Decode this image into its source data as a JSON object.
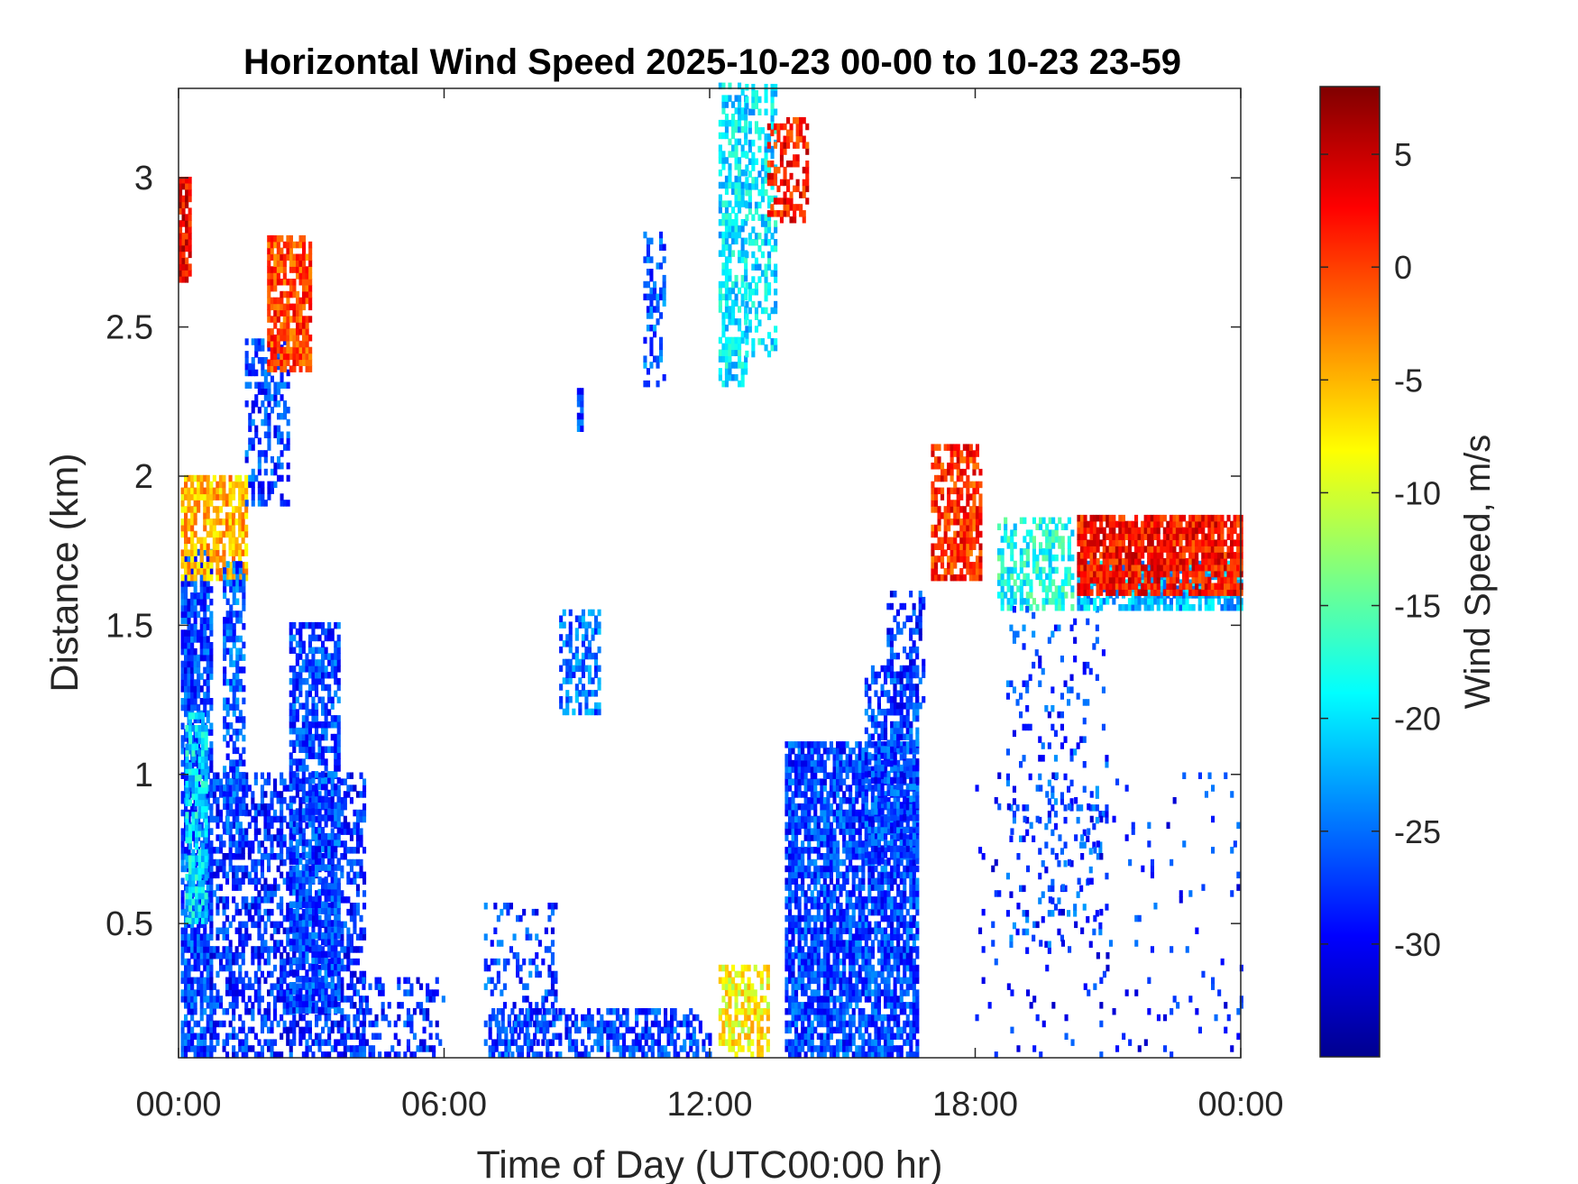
{
  "chart_data": {
    "type": "heatmap",
    "title": "Horizontal Wind Speed 2025-10-23 00-00 to 10-23 23-59",
    "xlabel": "Time of Day (UTC00:00 hr)",
    "ylabel": "Distance (km)",
    "x_ticks": [
      "00:00",
      "06:00",
      "12:00",
      "18:00",
      "00:00"
    ],
    "x_tick_hours": [
      0,
      6,
      12,
      18,
      24
    ],
    "xlim_hours": [
      0,
      24
    ],
    "y_ticks": [
      "0.5",
      "1",
      "1.5",
      "2",
      "2.5",
      "3"
    ],
    "y_tick_values": [
      0.5,
      1,
      1.5,
      2,
      2.5,
      3
    ],
    "ylim_km": [
      0.05,
      3.3
    ],
    "colorbar": {
      "label": "Wind Speed, m/s",
      "ticks": [
        "5",
        "0",
        "-5",
        "-10",
        "-15",
        "-20",
        "-25",
        "-30"
      ],
      "tick_values": [
        5,
        0,
        -5,
        -10,
        -15,
        -20,
        -25,
        -30
      ],
      "range": [
        -35,
        8
      ],
      "colormap": "jet"
    },
    "grid": false,
    "features": [
      {
        "hour_start": 0.0,
        "hour_end": 0.25,
        "km_low": 2.65,
        "km_high": 3.0,
        "speed": 3,
        "density": 0.9
      },
      {
        "hour_start": 0.05,
        "hour_end": 0.7,
        "km_low": 0.05,
        "km_high": 1.75,
        "speed": -27,
        "density": 0.8
      },
      {
        "hour_start": 0.15,
        "hour_end": 0.6,
        "km_low": 0.5,
        "km_high": 1.2,
        "speed": -20,
        "density": 0.7
      },
      {
        "hour_start": 0.05,
        "hour_end": 1.5,
        "km_low": 1.65,
        "km_high": 2.0,
        "speed": -5,
        "density": 0.75
      },
      {
        "hour_start": 0.7,
        "hour_end": 4.2,
        "km_low": 0.05,
        "km_high": 1.0,
        "speed": -28,
        "density": 0.55
      },
      {
        "hour_start": 1.0,
        "hour_end": 1.5,
        "km_low": 0.8,
        "km_high": 1.7,
        "speed": -26,
        "density": 0.6
      },
      {
        "hour_start": 2.5,
        "hour_end": 3.6,
        "km_low": 0.2,
        "km_high": 1.5,
        "speed": -27,
        "density": 0.7
      },
      {
        "hour_start": 1.5,
        "hour_end": 2.5,
        "km_low": 1.9,
        "km_high": 2.45,
        "speed": -27,
        "density": 0.45
      },
      {
        "hour_start": 2.0,
        "hour_end": 3.0,
        "km_low": 2.35,
        "km_high": 2.8,
        "speed": 0,
        "density": 0.8
      },
      {
        "hour_start": 4.0,
        "hour_end": 6.0,
        "km_low": 0.05,
        "km_high": 0.3,
        "speed": -28,
        "density": 0.3
      },
      {
        "hour_start": 6.9,
        "hour_end": 8.5,
        "km_low": 0.05,
        "km_high": 0.55,
        "speed": -27,
        "density": 0.25
      },
      {
        "hour_start": 7.0,
        "hour_end": 12.0,
        "km_low": 0.05,
        "km_high": 0.2,
        "speed": -27,
        "density": 0.55
      },
      {
        "hour_start": 8.6,
        "hour_end": 9.5,
        "km_low": 1.2,
        "km_high": 1.55,
        "speed": -25,
        "density": 0.55
      },
      {
        "hour_start": 9.0,
        "hour_end": 9.1,
        "km_low": 2.15,
        "km_high": 2.28,
        "speed": -27,
        "density": 0.8
      },
      {
        "hour_start": 10.5,
        "hour_end": 10.95,
        "km_low": 2.3,
        "km_high": 2.8,
        "speed": -26,
        "density": 0.4
      },
      {
        "hour_start": 12.2,
        "hour_end": 12.8,
        "km_low": 2.3,
        "km_high": 3.3,
        "speed": -20,
        "density": 0.6
      },
      {
        "hour_start": 12.8,
        "hour_end": 13.5,
        "km_low": 2.4,
        "km_high": 3.3,
        "speed": -20,
        "density": 0.45
      },
      {
        "hour_start": 13.3,
        "hour_end": 14.2,
        "km_low": 2.85,
        "km_high": 3.2,
        "speed": 2,
        "density": 0.55
      },
      {
        "hour_start": 12.2,
        "hour_end": 13.3,
        "km_low": 0.05,
        "km_high": 0.35,
        "speed": -8,
        "density": 0.6
      },
      {
        "hour_start": 13.7,
        "hour_end": 16.7,
        "km_low": 0.05,
        "km_high": 1.1,
        "speed": -27,
        "density": 0.8
      },
      {
        "hour_start": 15.5,
        "hour_end": 16.7,
        "km_low": 0.7,
        "km_high": 1.35,
        "speed": -27,
        "density": 0.6
      },
      {
        "hour_start": 16.0,
        "hour_end": 16.8,
        "km_low": 1.2,
        "km_high": 1.6,
        "speed": -28,
        "density": 0.4
      },
      {
        "hour_start": 17.0,
        "hour_end": 18.1,
        "km_low": 1.65,
        "km_high": 2.1,
        "speed": 1,
        "density": 0.7
      },
      {
        "hour_start": 18.5,
        "hour_end": 20.2,
        "km_low": 1.55,
        "km_high": 1.85,
        "speed": -18,
        "density": 0.5
      },
      {
        "hour_start": 18.7,
        "hour_end": 21.0,
        "km_low": 0.4,
        "km_high": 1.55,
        "speed": -27,
        "density": 0.12
      },
      {
        "hour_start": 20.3,
        "hour_end": 24.0,
        "km_low": 1.55,
        "km_high": 1.7,
        "speed": -22,
        "density": 0.75
      },
      {
        "hour_start": 20.3,
        "hour_end": 24.0,
        "km_low": 1.6,
        "km_high": 1.85,
        "speed": 2,
        "density": 0.85
      },
      {
        "hour_start": 18.0,
        "hour_end": 24.0,
        "km_low": 0.05,
        "km_high": 1.0,
        "speed": -28,
        "density": 0.04
      }
    ]
  }
}
